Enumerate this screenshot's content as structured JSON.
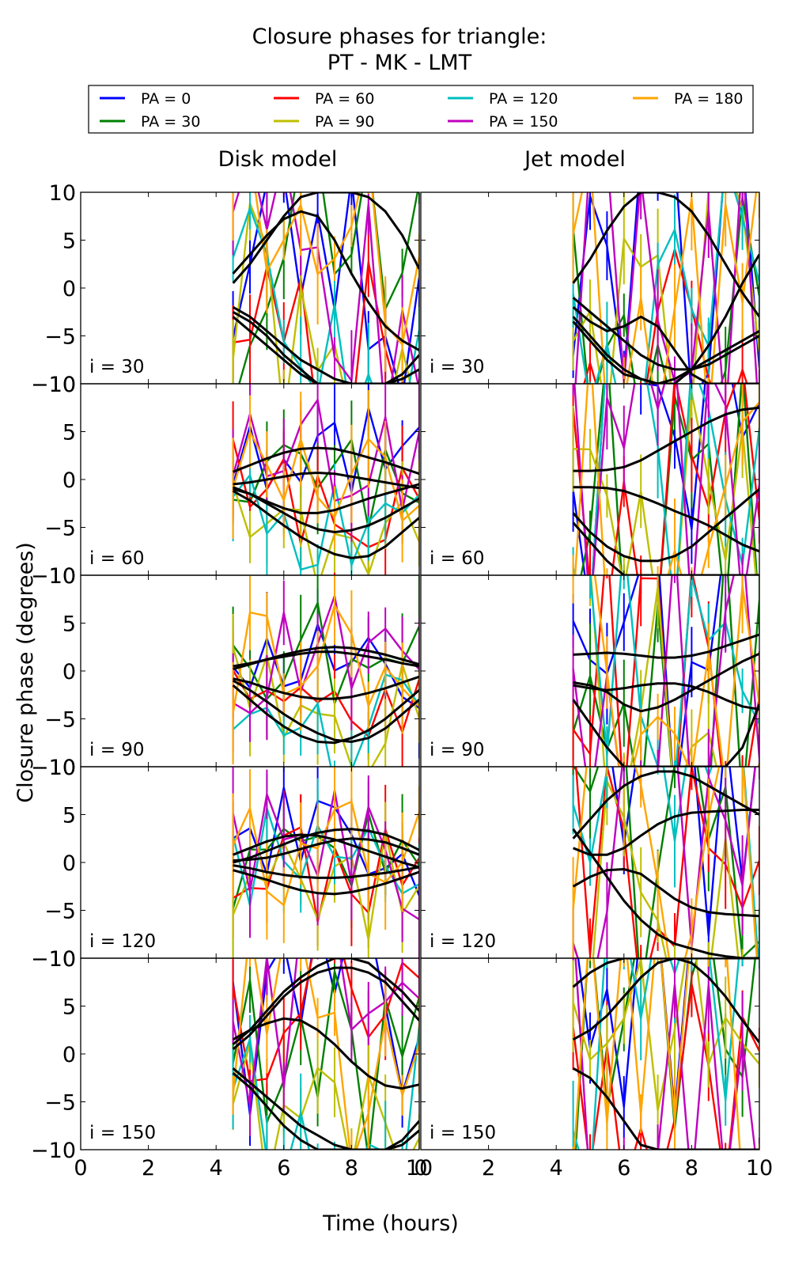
{
  "figure": {
    "title_line1": "Closure phases for triangle:",
    "title_line2": "PT - MK - LMT",
    "xlabel": "Time (hours)",
    "ylabel": "Closure phase (degrees)"
  },
  "legend": [
    {
      "label": "PA = 0",
      "color": "#0000ff"
    },
    {
      "label": "PA = 30",
      "color": "#008000"
    },
    {
      "label": "PA = 60",
      "color": "#ff0000"
    },
    {
      "label": "PA = 90",
      "color": "#bfbf00"
    },
    {
      "label": "PA = 120",
      "color": "#00bfbf"
    },
    {
      "label": "PA = 150",
      "color": "#bf00bf"
    },
    {
      "label": "PA = 180",
      "color": "#ffa500"
    }
  ],
  "chart_data": {
    "type": "line",
    "columns": [
      "Disk model",
      "Jet model"
    ],
    "rows": [
      "i = 30",
      "i = 60",
      "i = 90",
      "i = 120",
      "i = 150"
    ],
    "xlim": [
      0,
      10
    ],
    "ylim": [
      -10,
      10
    ],
    "xticks": [
      "0",
      "2",
      "4",
      "6",
      "8",
      "10"
    ],
    "yticks": [
      "10",
      "5",
      "0",
      "−5",
      "−10"
    ],
    "grid": false,
    "legend_position": "top",
    "series_names": [
      "PA = 0",
      "PA = 30",
      "PA = 60",
      "PA = 90",
      "PA = 120",
      "PA = 150",
      "PA = 180"
    ],
    "x": [
      4.5,
      5.0,
      5.5,
      6.0,
      6.5,
      7.0,
      7.5,
      8.0,
      8.5,
      9.0,
      9.5,
      10.0
    ],
    "panels": [
      {
        "column": "Disk model",
        "row": "i = 30",
        "model_curves": [
          [
            1.5,
            3.5,
            5.5,
            7.2,
            8.0,
            7.5,
            5.0,
            1.5,
            -1.5,
            -4.0,
            -5.5,
            -6.5
          ],
          [
            0.5,
            2.5,
            5.0,
            7.5,
            9.5,
            10.0,
            10.0,
            10.0,
            9.5,
            8.0,
            5.5,
            2.0
          ],
          [
            -2.0,
            -3.0,
            -4.5,
            -6.0,
            -7.5,
            -8.5,
            -9.5,
            -10.0,
            -10.0,
            -10.0,
            -9.5,
            -8.5
          ],
          [
            -2.5,
            -3.5,
            -5.0,
            -7.0,
            -8.5,
            -10.0,
            -10.0,
            -10.0,
            -10.0,
            -10.0,
            -9.0,
            -7.0
          ],
          [
            -3.0,
            -4.5,
            -6.0,
            -7.5,
            -9.0,
            -10.0,
            -10.0,
            -10.0,
            -10.0,
            -10.0,
            -10.0,
            -10.0
          ]
        ]
      },
      {
        "column": "Jet model",
        "row": "i = 30",
        "model_curves": [
          [
            0.5,
            3.0,
            6.0,
            8.5,
            10.0,
            10.0,
            9.5,
            8.0,
            5.5,
            2.5,
            -0.5,
            -3.0
          ],
          [
            -1.0,
            -2.5,
            -4.0,
            -5.5,
            -7.0,
            -8.0,
            -8.5,
            -8.5,
            -8.0,
            -7.0,
            -6.0,
            -5.0
          ],
          [
            -2.0,
            -3.5,
            -4.5,
            -4.0,
            -3.0,
            -4.0,
            -6.5,
            -9.0,
            -10.0,
            -10.0,
            -10.0,
            -10.0
          ],
          [
            -3.0,
            -5.0,
            -7.0,
            -8.5,
            -9.5,
            -10.0,
            -10.0,
            -8.5,
            -6.0,
            -3.0,
            0.5,
            3.5
          ],
          [
            -3.5,
            -5.5,
            -7.5,
            -9.0,
            -9.5,
            -10.0,
            -9.5,
            -8.5,
            -7.5,
            -6.5,
            -5.5,
            -4.5
          ]
        ]
      },
      {
        "column": "Disk model",
        "row": "i = 60",
        "model_curves": [
          [
            0.8,
            1.5,
            2.2,
            2.8,
            3.2,
            3.3,
            3.2,
            2.8,
            2.3,
            1.8,
            1.2,
            0.6
          ],
          [
            -0.5,
            -0.3,
            0.0,
            0.3,
            0.6,
            0.7,
            0.6,
            0.3,
            0.0,
            -0.3,
            -0.6,
            -0.9
          ],
          [
            -1.0,
            -1.5,
            -2.3,
            -3.0,
            -3.5,
            -3.5,
            -3.2,
            -2.6,
            -2.0,
            -1.5,
            -1.0,
            -0.5
          ],
          [
            -1.2,
            -2.2,
            -3.5,
            -4.8,
            -6.0,
            -7.0,
            -7.8,
            -8.2,
            -8.0,
            -7.0,
            -5.5,
            -4.0
          ],
          [
            -0.8,
            -1.5,
            -2.5,
            -3.5,
            -4.5,
            -5.2,
            -5.5,
            -5.3,
            -4.8,
            -4.0,
            -3.0,
            -2.0
          ]
        ]
      },
      {
        "column": "Jet model",
        "row": "i = 60",
        "model_curves": [
          [
            0.9,
            0.9,
            1.0,
            1.3,
            2.0,
            3.0,
            4.0,
            5.0,
            6.0,
            6.8,
            7.3,
            7.5
          ],
          [
            -0.8,
            -0.8,
            -0.9,
            -1.2,
            -1.8,
            -2.5,
            -3.3,
            -4.0,
            -4.8,
            -5.8,
            -6.8,
            -7.5
          ],
          [
            -3.5,
            -5.5,
            -7.0,
            -8.0,
            -8.5,
            -8.5,
            -8.0,
            -7.0,
            -5.5,
            -4.0,
            -2.5,
            -1.0
          ],
          [
            -4.5,
            -6.5,
            -8.5,
            -10.0,
            -10.0,
            -10.0,
            -10.0,
            -10.0,
            -10.0,
            -10.0,
            -10.0,
            -10.0
          ]
        ]
      },
      {
        "column": "Disk model",
        "row": "i = 90",
        "model_curves": [
          [
            0.2,
            0.7,
            1.2,
            1.7,
            2.1,
            2.4,
            2.5,
            2.4,
            2.1,
            1.7,
            1.2,
            0.7
          ],
          [
            0.5,
            0.8,
            1.2,
            1.5,
            1.8,
            2.0,
            2.0,
            1.8,
            1.5,
            1.2,
            0.8,
            0.5
          ],
          [
            -0.8,
            -1.2,
            -1.8,
            -2.3,
            -2.7,
            -2.9,
            -2.9,
            -2.7,
            -2.3,
            -1.8,
            -1.2,
            -0.6
          ],
          [
            -1.0,
            -2.0,
            -3.2,
            -4.5,
            -5.6,
            -6.5,
            -7.2,
            -7.4,
            -7.0,
            -6.0,
            -4.5,
            -3.0
          ],
          [
            -1.5,
            -3.0,
            -4.5,
            -5.8,
            -6.8,
            -7.4,
            -7.5,
            -7.0,
            -6.2,
            -5.0,
            -3.5,
            -2.0
          ]
        ]
      },
      {
        "column": "Jet model",
        "row": "i = 90",
        "model_curves": [
          [
            1.7,
            1.8,
            1.9,
            1.8,
            1.6,
            1.4,
            1.4,
            1.6,
            2.0,
            2.6,
            3.2,
            3.8
          ],
          [
            -1.2,
            -1.5,
            -2.2,
            -3.5,
            -4.2,
            -3.8,
            -3.0,
            -2.0,
            -1.0,
            0.0,
            1.0,
            1.8
          ],
          [
            -1.5,
            -1.8,
            -2.0,
            -1.8,
            -1.5,
            -1.3,
            -1.3,
            -1.6,
            -2.2,
            -3.0,
            -3.7,
            -4.0
          ],
          [
            -3.0,
            -5.5,
            -8.0,
            -10.0,
            -10.0,
            -10.0,
            -10.0,
            -10.0,
            -10.0,
            -10.0,
            -8.0,
            -3.5
          ]
        ]
      },
      {
        "column": "Disk model",
        "row": "i = 120",
        "model_curves": [
          [
            0.8,
            1.5,
            2.2,
            2.7,
            2.9,
            2.8,
            2.4,
            1.8,
            1.2,
            0.6,
            0.0,
            -0.5
          ],
          [
            0.2,
            0.3,
            0.5,
            0.9,
            1.4,
            1.9,
            2.3,
            2.5,
            2.4,
            2.1,
            1.5,
            0.8
          ],
          [
            -0.3,
            -0.6,
            -1.0,
            -1.3,
            -1.5,
            -1.6,
            -1.6,
            -1.5,
            -1.3,
            -1.1,
            -0.8,
            -0.5
          ],
          [
            -0.8,
            -1.3,
            -1.8,
            -2.4,
            -2.9,
            -3.2,
            -3.3,
            -3.1,
            -2.7,
            -2.2,
            -1.6,
            -1.0
          ],
          [
            0.0,
            0.5,
            1.2,
            1.9,
            2.6,
            3.1,
            3.4,
            3.5,
            3.3,
            2.9,
            2.2,
            1.3
          ]
        ]
      },
      {
        "column": "Jet model",
        "row": "i = 120",
        "model_curves": [
          [
            2.5,
            4.5,
            6.5,
            8.0,
            9.0,
            9.5,
            9.5,
            9.0,
            8.0,
            7.0,
            6.0,
            5.0
          ],
          [
            1.5,
            0.8,
            0.8,
            1.5,
            2.8,
            4.0,
            4.8,
            5.2,
            5.3,
            5.4,
            5.5,
            5.5
          ],
          [
            -2.5,
            -1.5,
            -0.8,
            -0.7,
            -1.2,
            -2.5,
            -3.8,
            -4.7,
            -5.2,
            -5.4,
            -5.5,
            -5.6
          ],
          [
            3.5,
            1.0,
            -1.5,
            -4.0,
            -6.0,
            -7.5,
            -8.5,
            -9.0,
            -9.5,
            -9.8,
            -10.0,
            -10.0
          ]
        ]
      },
      {
        "column": "Disk model",
        "row": "i = 150",
        "model_curves": [
          [
            1.0,
            2.5,
            4.5,
            6.5,
            8.0,
            9.2,
            10.0,
            10.0,
            9.5,
            8.0,
            6.5,
            4.5
          ],
          [
            1.5,
            2.5,
            3.2,
            3.7,
            3.5,
            2.5,
            1.0,
            -0.8,
            -2.3,
            -3.3,
            -3.6,
            -3.2
          ],
          [
            0.5,
            2.0,
            4.0,
            6.0,
            7.5,
            8.5,
            9.0,
            9.0,
            8.5,
            7.5,
            5.5,
            3.5
          ],
          [
            -1.5,
            -3.0,
            -4.5,
            -6.0,
            -7.5,
            -8.5,
            -9.5,
            -10.0,
            -10.0,
            -10.0,
            -9.0,
            -7.0
          ],
          [
            -2.0,
            -3.5,
            -5.5,
            -7.5,
            -9.0,
            -10.0,
            -10.0,
            -10.0,
            -10.0,
            -10.0,
            -9.5,
            -8.0
          ]
        ]
      },
      {
        "column": "Jet model",
        "row": "i = 150",
        "model_curves": [
          [
            7.0,
            8.5,
            9.5,
            10.0,
            10.0,
            10.0,
            10.0,
            9.5,
            8.0,
            6.0,
            3.5,
            1.2
          ],
          [
            1.5,
            2.5,
            4.0,
            6.0,
            8.0,
            9.5,
            10.0,
            10.0,
            10.0,
            10.0,
            10.0,
            10.0
          ],
          [
            -1.5,
            -2.5,
            -4.5,
            -7.0,
            -9.5,
            -10.0,
            -10.0,
            -10.0,
            -10.0,
            -10.0,
            -10.0,
            -10.0
          ]
        ]
      }
    ]
  }
}
